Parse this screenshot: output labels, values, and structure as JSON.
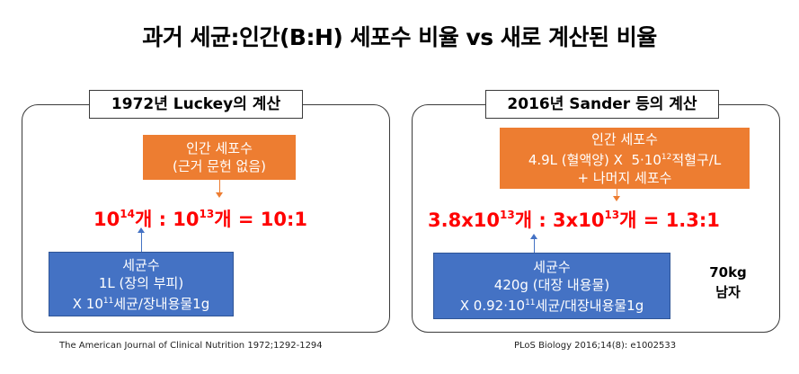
{
  "title": "과거 세균:인간(B:H) 세포수 비율 vs 새로 계산된 비율",
  "left": {
    "heading": "1972년 Luckey의 계산",
    "human_box": {
      "line1": "인간 세포수",
      "line2": "(근거 문헌 없음)"
    },
    "ratio": {
      "a_base": "10",
      "a_exp": "14",
      "a_unit": "개",
      "sep": " : ",
      "b_base": "10",
      "b_exp": "13",
      "b_unit": "개",
      "eq": " = ",
      "result": "10:1"
    },
    "bacteria_box": {
      "line1": "세균수",
      "line2": "1L (장의 부피)",
      "line3_pre": "X 10",
      "line3_exp": "11",
      "line3_post": "세균/장내용물1g"
    },
    "citation": "The American Journal of Clinical Nutrition 1972;1292-1294"
  },
  "right": {
    "heading": "2016년 Sander 등의 계산",
    "human_box": {
      "line1": "인간 세포수",
      "line2_pre": "4.9L (혈액양) X  5·10",
      "line2_exp": "12",
      "line2_post": "적혈구/L",
      "line3": "+ 나머지 세포수"
    },
    "ratio": {
      "a_base": "3.8x10",
      "a_exp": "13",
      "a_unit": "개",
      "sep": " : ",
      "b_base": "3x10",
      "b_exp": "13",
      "b_unit": "개",
      "eq": " = ",
      "result": "1.3:1"
    },
    "bacteria_box": {
      "line1": "세균수",
      "line2": "420g (대장 내용물)",
      "line3_pre": "X 0.92·10",
      "line3_exp": "11",
      "line3_post": "세균/대장내용물1g"
    },
    "note": {
      "line1": "70kg",
      "line2": "남자"
    },
    "citation": "PLoS Biology 2016;14(8): e1002533"
  },
  "colors": {
    "orange": "#ed7d31",
    "blue": "#4472c4",
    "red": "#ff0000"
  }
}
